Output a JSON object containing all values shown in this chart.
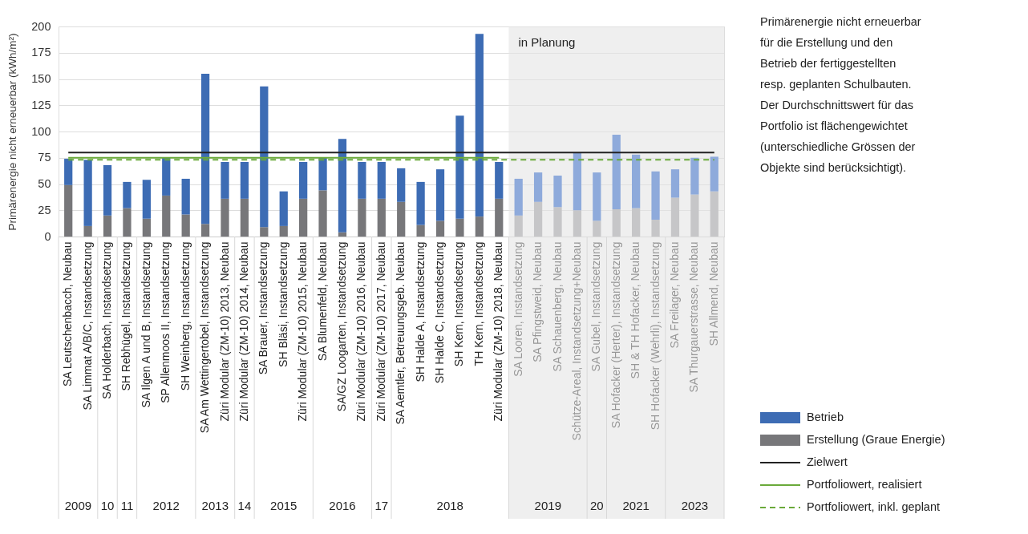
{
  "chart_data": {
    "type": "bar",
    "stacked": true,
    "ylabel": "Primärenergie nicht erneuerbar (kWh/m²)",
    "categories": [
      "SA Leutschenbacch, Neubau",
      "SA Limmat A/B/C, Instandsetzung",
      "SA Holderbach, Instandsetzung",
      "SH Rebhügel, Instandsetzung",
      "SA Ilgen A und B, Instandsetzung",
      "SP Allenmoos II, Instandsetzung",
      "SH Weinberg, Instandsetzung",
      "SA Am Wettingertobel, Instandsetzung",
      "Züri Modular (ZM-10) 2013, Neubau",
      "Züri Modular (ZM-10) 2014, Neubau",
      "SA Brauer, Instandsetzung",
      "SH Bläsi, Instandsetzung",
      "Züri Modular (ZM-10) 2015, Neubau",
      "SA Blumenfeld, Neubau",
      "SA/GZ Loogarten, Instandsetzung",
      "Züri Modular (ZM-10) 2016, Neubau",
      "Züri Modular (ZM-10) 2017, Neubau",
      "SA Aemtler, Betreuungsgeb. Neubau",
      "SH Halde A, Instandsetzung",
      "SH Halde C, Instandsetzung",
      "SH Kern, Instandsetzung",
      "TH Kern, Instandsetzung",
      "Züri Modular (ZM-10) 2018, Neubau",
      "SA Looren, Instandsetzung",
      "SA Pfingstweid, Neubau",
      "SA Schauenberg, Neubau",
      "Schütze-Areal, Instandsetzung+Neubau",
      "SA Gubel, Instandsetzung",
      "SA Hofacker (Herter), Instandsetzung",
      "SH & TH Hofacker, Neubau",
      "SH Hofacker (Wehrli), Instandsetzung",
      "SA Freilager, Neubau",
      "SA Thurgauerstrasse, Neubau",
      "SH Allmend, Neubau"
    ],
    "series": [
      {
        "name": "Erstellung (Graue Energie)",
        "type": "bar",
        "color": "#77777a",
        "colors": [
          "#77777a",
          "#77777a",
          "#77777a",
          "#77777a",
          "#77777a",
          "#77777a",
          "#77777a",
          "#77777a",
          "#77777a",
          "#77777a",
          "#77777a",
          "#77777a",
          "#77777a",
          "#77777a",
          "#77777a",
          "#77777a",
          "#77777a",
          "#77777a",
          "#77777a",
          "#77777a",
          "#77777a",
          "#77777a",
          "#77777a",
          "#c6c6c8",
          "#c6c6c8",
          "#c6c6c8",
          "#c6c6c8",
          "#c6c6c8",
          "#c6c6c8",
          "#c6c6c8",
          "#c6c6c8",
          "#c6c6c8",
          "#c6c6c8",
          "#c6c6c8"
        ],
        "values": [
          49,
          10,
          20,
          27,
          17,
          39,
          21,
          12,
          36,
          36,
          9,
          10,
          36,
          44,
          4,
          36,
          36,
          33,
          11,
          15,
          17,
          19,
          36,
          20,
          33,
          28,
          25,
          15,
          26,
          27,
          16,
          37,
          40,
          43
        ]
      },
      {
        "name": "Betrieb",
        "type": "bar",
        "color": "#3d6cb4",
        "colors": [
          "#3d6cb4",
          "#3d6cb4",
          "#3d6cb4",
          "#3d6cb4",
          "#3d6cb4",
          "#3d6cb4",
          "#3d6cb4",
          "#3d6cb4",
          "#3d6cb4",
          "#3d6cb4",
          "#3d6cb4",
          "#3d6cb4",
          "#3d6cb4",
          "#3d6cb4",
          "#3d6cb4",
          "#3d6cb4",
          "#3d6cb4",
          "#3d6cb4",
          "#3d6cb4",
          "#3d6cb4",
          "#3d6cb4",
          "#3d6cb4",
          "#3d6cb4",
          "#8eaadb",
          "#8eaadb",
          "#8eaadb",
          "#8eaadb",
          "#8eaadb",
          "#8eaadb",
          "#8eaadb",
          "#8eaadb",
          "#8eaadb",
          "#8eaadb",
          "#8eaadb"
        ],
        "values": [
          25,
          63,
          48,
          25,
          37,
          36,
          34,
          143,
          35,
          35,
          134,
          33,
          35,
          31,
          89,
          35,
          35,
          32,
          41,
          49,
          98,
          174,
          35,
          35,
          28,
          30,
          55,
          46,
          71,
          51,
          46,
          27,
          35,
          33
        ]
      },
      {
        "name": "Zielwert",
        "type": "line",
        "color": "#222222",
        "line_style": "solid",
        "values": [
          80,
          80,
          80,
          80,
          80,
          80,
          80,
          80,
          80,
          80,
          80,
          80,
          80,
          80,
          80,
          80,
          80,
          80,
          80,
          80,
          80,
          80,
          80,
          80,
          80,
          80,
          80,
          80,
          80,
          80,
          80,
          80,
          80,
          80
        ]
      },
      {
        "name": "Portfoliowert, realisiert",
        "type": "line",
        "color": "#6aaa3a",
        "line_style": "solid",
        "values": [
          75,
          75,
          75,
          75,
          75,
          75,
          75,
          75,
          75,
          75,
          75,
          75,
          75,
          75,
          75,
          75,
          75,
          75,
          75,
          75,
          75,
          75,
          75,
          null,
          null,
          null,
          null,
          null,
          null,
          null,
          null,
          null,
          null,
          null
        ]
      },
      {
        "name": "Portfoliowert, inkl. geplant",
        "type": "line",
        "color": "#6aaa3a",
        "line_style": "dashed",
        "values": [
          73,
          73,
          73,
          73,
          73,
          73,
          73,
          73,
          73,
          73,
          73,
          73,
          73,
          73,
          73,
          73,
          73,
          73,
          73,
          73,
          73,
          73,
          73,
          73,
          73,
          73,
          73,
          73,
          73,
          73,
          73,
          73,
          73,
          73
        ]
      }
    ],
    "ylim": [
      0,
      200
    ],
    "yticks": [
      0,
      25,
      50,
      75,
      100,
      125,
      150,
      175,
      200
    ],
    "grid": "y",
    "legend": "bottom right",
    "bands": [
      {
        "axis": "x",
        "from": "SA Looren, Instandsetzung",
        "to": "SH Allmend, Neubau",
        "label": "in Planung",
        "color": "#e4e4e4"
      }
    ],
    "annotations": [
      "Primärenergie nicht erneuerbar für die Erstellung und den Betrieb der fertiggestellten resp. geplanten Schulbauten. Der Durchschnittswert für das Portfolio ist flächengewichtet (unterschiedliche Grössen der Objekte sind berücksichtigt).",
      "2009",
      "10",
      "11",
      "2012",
      "2013",
      "14",
      "2015",
      "2016",
      "17",
      "2018",
      "2019",
      "20",
      "2021",
      "2023"
    ]
  }
}
